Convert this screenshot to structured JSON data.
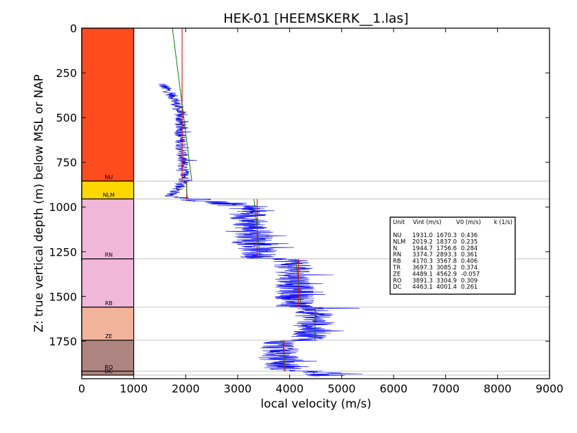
{
  "chart_data": {
    "type": "line",
    "title": "HEK-01 [HEEMSKERK__1.las]",
    "xlabel": "local velocity (m/s)",
    "ylabel": "Z: true vertical depth (m) below MSL or NAP",
    "xlim": [
      0,
      9000
    ],
    "ylim": [
      1960,
      0
    ],
    "x_ticks": [
      "0",
      "1000",
      "2000",
      "3000",
      "4000",
      "5000",
      "6000",
      "7000",
      "8000",
      "9000"
    ],
    "y_ticks": [
      "0",
      "250",
      "500",
      "750",
      "1000",
      "1250",
      "1500",
      "1750"
    ],
    "colors": {
      "log": "#0000ff",
      "vint": "#ff0000",
      "fit": "#008000",
      "boundary": "#c0c0c0"
    },
    "units": [
      {
        "name": "NU",
        "top": 0,
        "base": 855,
        "color": "#ff4c1f",
        "vint": 1931.0,
        "v0": 1670.3,
        "k": 0.436
      },
      {
        "name": "NLM",
        "top": 855,
        "base": 955,
        "color": "#ffd700",
        "vint": 2019.2,
        "v0": 1837.0,
        "k": 0.235
      },
      {
        "name": "RN",
        "top": 955,
        "base": 1290,
        "color": "#f0b7d8",
        "vint": 3374.7,
        "v0": 2893.3,
        "k": 0.361
      },
      {
        "name": "RB",
        "top": 1290,
        "base": 1560,
        "color": "#f0b7d8",
        "vint": 4170.3,
        "v0": 3567.8,
        "k": 0.406
      },
      {
        "name": "ZE",
        "top": 1560,
        "base": 1745,
        "color": "#f2b39b",
        "vint": 4489.1,
        "v0": 4562.9,
        "k": -0.057
      },
      {
        "name": "RO",
        "top": 1745,
        "base": 1918,
        "color": "#ad8480",
        "vint": 3891.3,
        "v0": 3304.9,
        "k": 0.309
      },
      {
        "name": "DC",
        "top": 1918,
        "base": 1940,
        "color": "#ad8480",
        "vint": 4463.1,
        "v0": 4001.4,
        "k": 0.261
      }
    ],
    "legend": {
      "headers": [
        "Unit",
        "Vint (m/s)",
        "V0 (m/s)",
        "k (1/s)"
      ],
      "rows": [
        [
          "NU",
          "1931.0",
          "1670.3",
          "0.436"
        ],
        [
          "NLM",
          "2019.2",
          "1837.0",
          "0.235"
        ],
        [
          "N",
          "1944.7",
          "1756.6",
          "0.284"
        ],
        [
          "RN",
          "3374.7",
          "2893.3",
          "0.361"
        ],
        [
          "RB",
          "4170.3",
          "3567.8",
          "0.406"
        ],
        [
          "TR",
          "3697.3",
          "3085.2",
          "0.374"
        ],
        [
          "ZE",
          "4489.1",
          "4562.9",
          "-0.057"
        ],
        [
          "RO",
          "3891.3",
          "3304.9",
          "0.309"
        ],
        [
          "DC",
          "4463.1",
          "4001.4",
          "0.261"
        ]
      ]
    },
    "velocity_log": {
      "start_depth": 310,
      "end_depth": 1945,
      "trend": [
        [
          310,
          1540
        ],
        [
          400,
          1800
        ],
        [
          500,
          1900
        ],
        [
          600,
          1900
        ],
        [
          700,
          1930
        ],
        [
          800,
          1960
        ],
        [
          850,
          1990
        ],
        [
          900,
          1850
        ],
        [
          940,
          1700
        ],
        [
          955,
          2100
        ],
        [
          1000,
          3200
        ],
        [
          1100,
          3250
        ],
        [
          1200,
          3350
        ],
        [
          1285,
          3400
        ],
        [
          1290,
          4050
        ],
        [
          1400,
          4100
        ],
        [
          1555,
          4100
        ],
        [
          1560,
          4500
        ],
        [
          1650,
          4450
        ],
        [
          1745,
          4400
        ],
        [
          1750,
          3800
        ],
        [
          1850,
          3800
        ],
        [
          1915,
          3900
        ],
        [
          1920,
          4600
        ],
        [
          1945,
          4600
        ]
      ]
    }
  }
}
